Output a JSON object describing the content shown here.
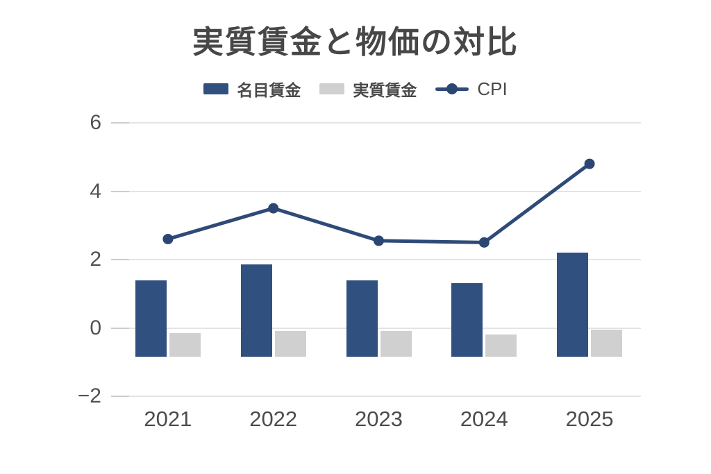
{
  "title": "実質賃金と物価の対比",
  "chart_data": {
    "type": "bar",
    "title": "実質賃金と物価の対比",
    "categories": [
      "2021",
      "2022",
      "2023",
      "2024",
      "2025"
    ],
    "series": [
      {
        "name": "名目賃金",
        "type": "bar",
        "color": "#30507f",
        "values": [
          1.4,
          1.85,
          1.4,
          1.3,
          2.2
        ]
      },
      {
        "name": "実質賃金",
        "type": "bar",
        "color": "#d0d0d0",
        "values": [
          -0.15,
          -0.1,
          -0.1,
          -0.2,
          -0.05
        ]
      },
      {
        "name": "CPI",
        "type": "line",
        "color": "#2e4a78",
        "marker_color": "#2c4673",
        "values": [
          2.6,
          3.5,
          2.55,
          2.5,
          4.8
        ]
      }
    ],
    "xlabel": "",
    "ylabel": "",
    "ylim": [
      -2,
      6
    ],
    "yticks": [
      6,
      4,
      2,
      0,
      -2
    ],
    "ytick_labels": [
      "6",
      "4",
      "2",
      "0",
      "−2"
    ],
    "bar_baseline": -0.85,
    "grid": "horizontal",
    "legend_position": "top",
    "colors": {
      "text": "#4a4a4a",
      "gridline": "#e4e4e4",
      "tick": "#cccccc",
      "background": "#ffffff"
    }
  }
}
